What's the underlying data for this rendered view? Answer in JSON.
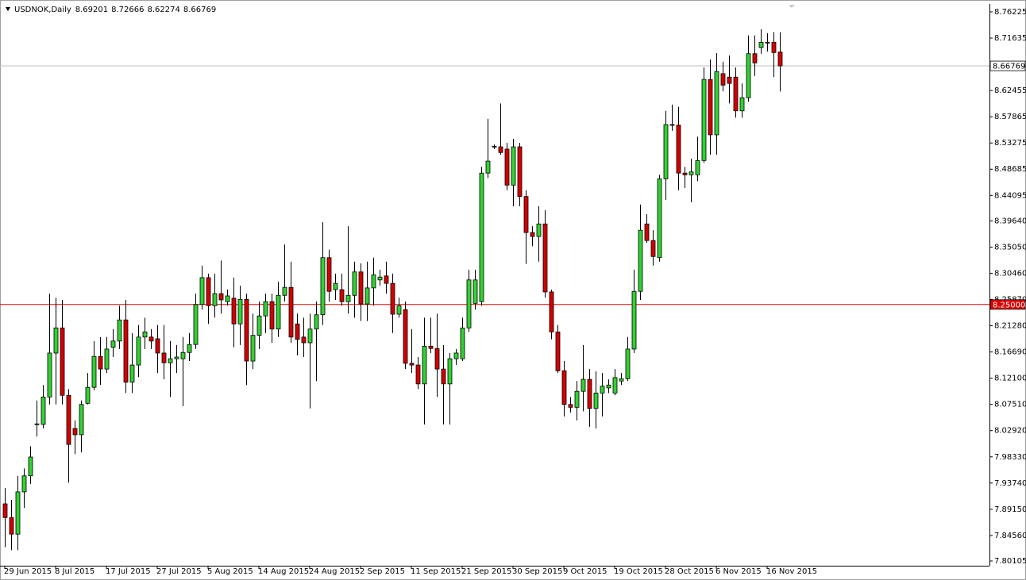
{
  "chart_data": {
    "type": "candlestick",
    "title": "USDNOK,Daily",
    "bull_color": "#32d232",
    "bear_color": "#d40000",
    "outline_color": "#000000",
    "grid": false,
    "ylim": [
      7.7927,
      8.7761
    ],
    "yticks": [
      8.76225,
      8.71635,
      8.62455,
      8.57865,
      8.53275,
      8.48685,
      8.44095,
      {
        "value": 8.3964,
        "label": "8.39640"
      },
      {
        "value": 8.3505,
        "label": "8.35050"
      },
      {
        "value": 8.3046,
        "label": "8.30460"
      },
      {
        "value": 8.2587,
        "label": "8.25870"
      },
      {
        "value": 8.2128,
        "label": "8.21280"
      },
      {
        "value": 8.1669,
        "label": "8.16690"
      },
      {
        "value": 8.121,
        "label": "8.12100"
      },
      {
        "value": 8.0751,
        "label": "8.07510"
      },
      {
        "value": 8.0292,
        "label": "8.02920"
      },
      {
        "value": 7.9833,
        "label": "7.98330"
      },
      {
        "value": 7.9374,
        "label": "7.93740"
      },
      {
        "value": 7.8915,
        "label": "7.89150"
      },
      {
        "value": 7.8456,
        "label": "7.84560"
      },
      7.80105
    ],
    "hlines": [
      {
        "value": 8.25,
        "label": "8.25000",
        "color": "#e00000",
        "label_fill": "#e00000",
        "label_color": "#ffffff"
      },
      {
        "value": 8.66769,
        "color": "#c0c0c0",
        "label_fill": "#ffffff",
        "label_color": "#000000"
      }
    ],
    "categories": [
      "29 Jun 2015",
      null,
      null,
      null,
      null,
      null,
      null,
      null,
      "8 Jul 2015",
      null,
      null,
      null,
      null,
      null,
      null,
      null,
      "17 Jul 2015",
      null,
      null,
      null,
      null,
      null,
      null,
      null,
      "27 Jul 2015",
      null,
      null,
      null,
      null,
      null,
      null,
      null,
      "5 Aug 2015",
      null,
      null,
      null,
      null,
      null,
      null,
      null,
      "14 Aug 2015",
      null,
      null,
      null,
      null,
      null,
      null,
      null,
      "24 Aug 2015",
      null,
      null,
      null,
      null,
      null,
      null,
      null,
      "2 Sep 2015",
      null,
      null,
      null,
      null,
      null,
      null,
      null,
      "11 Sep 2015",
      null,
      null,
      null,
      null,
      null,
      null,
      null,
      "21 Sep 2015",
      null,
      null,
      null,
      null,
      null,
      null,
      null,
      "30 Sep 2015",
      null,
      null,
      null,
      null,
      null,
      null,
      null,
      "9 Oct 2015",
      null,
      null,
      null,
      null,
      null,
      null,
      null,
      "19 Oct 2015",
      null,
      null,
      null,
      null,
      null,
      null,
      null,
      "28 Oct 2015",
      null,
      null,
      null,
      null,
      null,
      null,
      null,
      "6 Nov 2015",
      null,
      null,
      null,
      null,
      null,
      null,
      null,
      "16 Nov 2015",
      null,
      null
    ],
    "open": [
      7.901,
      7.877,
      7.848,
      7.922,
      7.95,
      8.04,
      8.04,
      8.088,
      8.165,
      8.209,
      8.091,
      8.033,
      8.022,
      8.077,
      8.105,
      8.159,
      8.137,
      8.175,
      8.186,
      8.223,
      8.114,
      8.144,
      8.193,
      8.193,
      8.19,
      8.165,
      8.148,
      8.155,
      8.155,
      8.166,
      8.18,
      8.25,
      8.297,
      8.248,
      8.269,
      8.255,
      8.261,
      8.216,
      8.259,
      8.151,
      8.196,
      8.23,
      8.255,
      8.207,
      8.266,
      8.28,
      8.216,
      8.193,
      8.183,
      8.207,
      8.232,
      8.332,
      8.276,
      8.276,
      8.255,
      8.266,
      8.307,
      8.251,
      8.279,
      8.293,
      8.3,
      8.287,
      8.233,
      8.241,
      8.147,
      8.144,
      8.111,
      8.177,
      8.173,
      8.137,
      8.111,
      8.155,
      8.155,
      8.209,
      8.252,
      8.255,
      8.48,
      8.526,
      8.526,
      8.522,
      8.459,
      8.526,
      8.439,
      8.376,
      8.369,
      8.391,
      8.272,
      8.202,
      8.134,
      8.075,
      8.07,
      8.098,
      8.119,
      8.068,
      8.095,
      8.104,
      8.095,
      8.116,
      8.12,
      8.172,
      8.273,
      8.391,
      8.362,
      8.332,
      8.47,
      8.565,
      8.564,
      8.48,
      8.477,
      8.477,
      8.502,
      8.644,
      8.547,
      8.654,
      8.648,
      8.648,
      8.589,
      8.612,
      8.689,
      8.7,
      8.709,
      8.709,
      8.69201
    ],
    "high": [
      7.929,
      7.908,
      7.95,
      7.963,
      8.002,
      8.082,
      8.109,
      8.269,
      8.262,
      8.258,
      8.102,
      8.047,
      8.082,
      8.13,
      8.186,
      8.193,
      8.193,
      8.207,
      8.248,
      8.258,
      8.2,
      8.214,
      8.227,
      8.207,
      8.214,
      8.214,
      8.186,
      8.179,
      8.193,
      8.2,
      8.269,
      8.318,
      8.304,
      8.304,
      8.327,
      8.276,
      8.297,
      8.283,
      8.269,
      8.234,
      8.255,
      8.269,
      8.269,
      8.29,
      8.355,
      8.325,
      8.234,
      8.227,
      8.234,
      8.255,
      8.394,
      8.346,
      8.304,
      8.304,
      8.387,
      8.325,
      8.322,
      8.325,
      8.332,
      8.311,
      8.325,
      8.304,
      8.262,
      8.255,
      8.207,
      8.158,
      8.227,
      8.227,
      8.234,
      8.179,
      8.165,
      8.172,
      8.227,
      8.311,
      8.311,
      8.491,
      8.575,
      8.53,
      8.602,
      8.533,
      8.54,
      8.533,
      8.45,
      8.387,
      8.422,
      8.415,
      8.276,
      8.214,
      8.151,
      8.088,
      8.116,
      8.179,
      8.137,
      8.133,
      8.13,
      8.119,
      8.137,
      8.13,
      8.193,
      8.311,
      8.425,
      8.408,
      8.38,
      8.477,
      8.589,
      8.6,
      8.596,
      8.491,
      8.505,
      8.544,
      8.665,
      8.679,
      8.69,
      8.675,
      8.686,
      8.665,
      8.637,
      8.721,
      8.721,
      8.732,
      8.725,
      8.727,
      8.72666
    ],
    "low": [
      7.825,
      7.82,
      7.82,
      7.894,
      7.936,
      8.019,
      8.033,
      8.075,
      8.075,
      8.075,
      7.938,
      7.988,
      7.991,
      8.075,
      8.1,
      8.109,
      8.13,
      8.158,
      8.172,
      8.095,
      8.095,
      8.123,
      8.172,
      8.172,
      8.13,
      8.119,
      8.088,
      8.13,
      8.072,
      8.151,
      8.172,
      8.241,
      8.216,
      8.227,
      8.234,
      8.248,
      8.175,
      8.179,
      8.109,
      8.137,
      8.172,
      8.2,
      8.183,
      8.193,
      8.255,
      8.183,
      8.161,
      8.158,
      8.068,
      8.116,
      8.214,
      8.255,
      8.258,
      8.248,
      8.234,
      8.227,
      8.221,
      8.221,
      8.248,
      8.283,
      8.269,
      8.2,
      8.227,
      8.137,
      8.13,
      8.102,
      8.04,
      8.165,
      8.088,
      8.04,
      8.04,
      8.144,
      8.151,
      8.202,
      8.241,
      8.248,
      8.471,
      8.522,
      8.512,
      8.45,
      8.422,
      8.422,
      8.321,
      8.352,
      8.325,
      8.262,
      8.189,
      8.13,
      8.054,
      8.061,
      8.047,
      8.063,
      8.036,
      8.033,
      8.054,
      8.095,
      8.091,
      8.109,
      8.116,
      8.165,
      8.258,
      8.358,
      8.318,
      8.325,
      8.433,
      8.554,
      8.45,
      8.454,
      8.429,
      8.466,
      8.498,
      8.512,
      8.512,
      8.623,
      8.602,
      8.577,
      8.577,
      8.605,
      8.65,
      8.689,
      8.693,
      8.648,
      8.62274
    ],
    "close": [
      7.877,
      7.848,
      7.922,
      7.95,
      7.983,
      8.041,
      8.088,
      8.165,
      8.209,
      8.091,
      8.005,
      8.022,
      8.075,
      8.105,
      8.159,
      8.137,
      8.172,
      8.186,
      8.223,
      8.114,
      8.144,
      8.193,
      8.202,
      8.186,
      8.165,
      8.148,
      8.155,
      8.158,
      8.166,
      8.18,
      8.25,
      8.297,
      8.248,
      8.269,
      8.258,
      8.265,
      8.216,
      8.259,
      8.151,
      8.196,
      8.23,
      8.255,
      8.207,
      8.266,
      8.28,
      8.193,
      8.189,
      8.183,
      8.207,
      8.232,
      8.332,
      8.273,
      8.287,
      8.255,
      8.266,
      8.307,
      8.251,
      8.279,
      8.302,
      8.298,
      8.287,
      8.233,
      8.248,
      8.147,
      8.144,
      8.111,
      8.177,
      8.173,
      8.137,
      8.111,
      8.155,
      8.165,
      8.209,
      8.293,
      8.293,
      8.48,
      8.501,
      8.527,
      8.516,
      8.459,
      8.526,
      8.439,
      8.376,
      8.369,
      8.391,
      8.272,
      8.202,
      8.134,
      8.075,
      8.07,
      8.098,
      8.119,
      8.068,
      8.095,
      8.107,
      8.109,
      8.122,
      8.12,
      8.172,
      8.273,
      8.38,
      8.362,
      8.334,
      8.47,
      8.565,
      8.564,
      8.48,
      8.477,
      8.482,
      8.502,
      8.644,
      8.547,
      8.658,
      8.634,
      8.637,
      8.589,
      8.612,
      8.689,
      8.673,
      8.709,
      8.708,
      8.691,
      8.66769
    ]
  }
}
